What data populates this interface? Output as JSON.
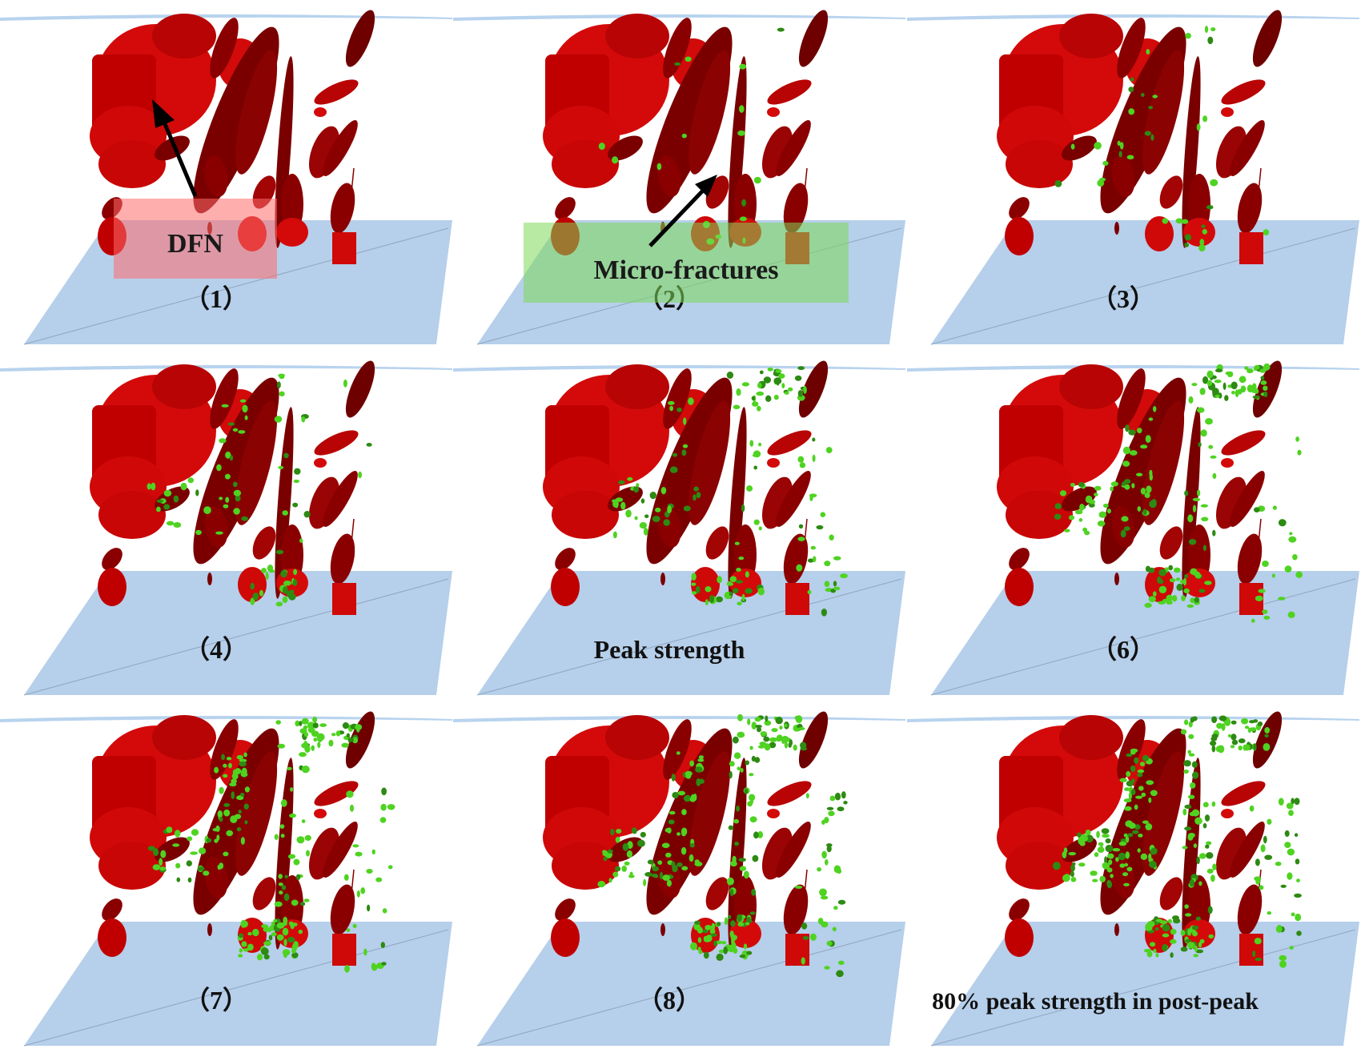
{
  "panels": [
    {
      "label": "（1）",
      "stage": 1,
      "micro_density": 0
    },
    {
      "label": "（2）",
      "stage": 2,
      "micro_density": 0.1
    },
    {
      "label": "（3）",
      "stage": 3,
      "micro_density": 0.2
    },
    {
      "label": "（4）",
      "stage": 4,
      "micro_density": 0.38
    },
    {
      "label": "Peak strength",
      "stage": 5,
      "micro_density": 0.52
    },
    {
      "label": "（6）",
      "stage": 6,
      "micro_density": 0.66
    },
    {
      "label": "（7）",
      "stage": 7,
      "micro_density": 0.8
    },
    {
      "label": "（8）",
      "stage": 8,
      "micro_density": 0.9
    },
    {
      "label": "80% peak strength in post-peak",
      "stage": 9,
      "micro_density": 1.0
    }
  ],
  "callouts": {
    "dfn": {
      "text": "DFN",
      "color": "#ff6b6b"
    },
    "micro": {
      "text": "Micro-fractures",
      "color": "#7ed957"
    }
  },
  "colors": {
    "fracture_bright": "#d40a0a",
    "fracture_mid": "#c00000",
    "fracture_dark": "#7a0000",
    "microcrack": "#4fd321",
    "microcrack_dark": "#2d8a12",
    "floor": "#b6cfea",
    "top_plane": "#b8d3ee"
  }
}
